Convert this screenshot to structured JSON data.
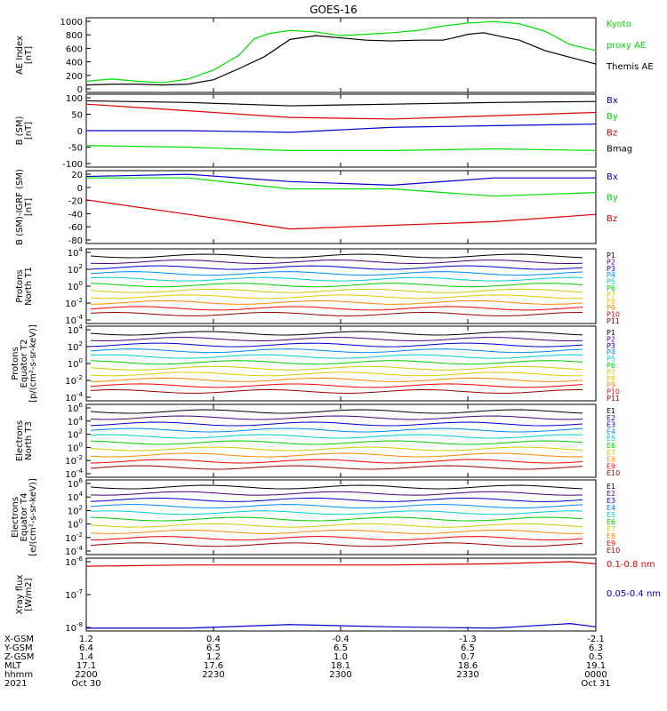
{
  "title": "GOES-16",
  "colors": {
    "black": "#000000",
    "green": "#00dd00",
    "red": "#dd0000",
    "blue": "#0000cc",
    "yellow": "#e6c800"
  },
  "chart_data": [
    {
      "type": "line",
      "panel": "ae",
      "ylabel": [
        "AE Index",
        "[nT]"
      ],
      "ylim": [
        0,
        1000
      ],
      "yticks": [
        "1000",
        "800",
        "600",
        "400",
        "200",
        "0"
      ],
      "legend": [
        {
          "label": "Kyoto",
          "color": "#00dd00"
        },
        {
          "label": "proxy AE",
          "color": "#00dd00"
        },
        {
          "label": "Themis AE",
          "color": "#000000"
        }
      ],
      "series": [
        {
          "name": "Kyoto proxy AE",
          "color": "#00dd00",
          "x": [
            0,
            5,
            10,
            15,
            20,
            25,
            30,
            33,
            36,
            40,
            45,
            50,
            55,
            60,
            65,
            70,
            75,
            80,
            85,
            90,
            95,
            100
          ],
          "y": [
            150,
            180,
            150,
            130,
            180,
            300,
            500,
            720,
            790,
            830,
            810,
            760,
            780,
            800,
            830,
            890,
            930,
            950,
            920,
            820,
            640,
            560
          ]
        },
        {
          "name": "Themis AE",
          "color": "#000000",
          "x": [
            0,
            5,
            10,
            15,
            20,
            25,
            30,
            35,
            40,
            45,
            50,
            55,
            60,
            65,
            70,
            72,
            75,
            78,
            82,
            85,
            90,
            95,
            100
          ],
          "y": [
            100,
            110,
            110,
            100,
            110,
            170,
            320,
            480,
            710,
            760,
            730,
            700,
            690,
            700,
            700,
            730,
            780,
            800,
            740,
            700,
            560,
            470,
            380
          ]
        }
      ]
    },
    {
      "type": "line",
      "panel": "b_sm",
      "ylabel": [
        "B (SM)",
        "[nT]"
      ],
      "ylim": [
        -110,
        110
      ],
      "yticks": [
        "100",
        "50",
        "0",
        "-50",
        "-100"
      ],
      "legend": [
        {
          "label": "Bx",
          "color": "#0000cc"
        },
        {
          "label": "By",
          "color": "#00dd00"
        },
        {
          "label": "Bz",
          "color": "#dd0000"
        },
        {
          "label": "Bmag",
          "color": "#000000"
        }
      ],
      "series": [
        {
          "name": "Bmag",
          "color": "#000000",
          "x": [
            0,
            20,
            40,
            60,
            80,
            100
          ],
          "y": [
            90,
            85,
            75,
            80,
            85,
            88
          ]
        },
        {
          "name": "Bz",
          "color": "#dd0000",
          "x": [
            0,
            20,
            40,
            60,
            80,
            100
          ],
          "y": [
            80,
            60,
            40,
            35,
            45,
            55
          ]
        },
        {
          "name": "Bx",
          "color": "#0000cc",
          "x": [
            0,
            20,
            40,
            60,
            80,
            100
          ],
          "y": [
            0,
            0,
            -5,
            10,
            15,
            20
          ]
        },
        {
          "name": "By",
          "color": "#00dd00",
          "x": [
            0,
            20,
            40,
            60,
            80,
            100
          ],
          "y": [
            -45,
            -50,
            -60,
            -60,
            -55,
            -60
          ]
        }
      ]
    },
    {
      "type": "line",
      "panel": "b_igrf",
      "ylabel": [
        "B (SM)-IGRF (SM)",
        "[nT]"
      ],
      "ylim": [
        -80,
        20
      ],
      "yticks": [
        "20",
        "0",
        "-20",
        "-40",
        "-60",
        "-80"
      ],
      "legend": [
        {
          "label": "Bx",
          "color": "#0000cc"
        },
        {
          "label": "By",
          "color": "#00dd00"
        },
        {
          "label": "Bz",
          "color": "#dd0000"
        }
      ],
      "series": [
        {
          "name": "Bx",
          "color": "#0000cc",
          "x": [
            0,
            20,
            40,
            60,
            80,
            100
          ],
          "y": [
            12,
            15,
            5,
            0,
            10,
            10
          ]
        },
        {
          "name": "By",
          "color": "#00dd00",
          "x": [
            0,
            20,
            40,
            60,
            80,
            100
          ],
          "y": [
            10,
            10,
            -5,
            -5,
            -15,
            -10
          ]
        },
        {
          "name": "Bz",
          "color": "#dd0000",
          "x": [
            0,
            20,
            40,
            60,
            80,
            100
          ],
          "y": [
            -20,
            -40,
            -60,
            -55,
            -50,
            -40
          ]
        }
      ]
    },
    {
      "type": "line",
      "panel": "protons_t1",
      "ylabel": [
        "Protons",
        "North T1"
      ],
      "yscale": "log",
      "yticks": [
        "10^4",
        "10^2",
        "10^0",
        "10^-2",
        "10^-4"
      ],
      "legend": [
        {
          "label": "P1",
          "color": "#000000"
        },
        {
          "label": "P2",
          "color": "#4b0082"
        },
        {
          "label": "P3",
          "color": "#0000cc"
        },
        {
          "label": "P4",
          "color": "#0088ff"
        },
        {
          "label": "P5",
          "color": "#00cccc"
        },
        {
          "label": "P6",
          "color": "#00cc00"
        },
        {
          "label": "P7",
          "color": "#cccc00"
        },
        {
          "label": "P8",
          "color": "#e6c800"
        },
        {
          "label": "P9",
          "color": "#ff8800"
        },
        {
          "label": "P10",
          "color": "#ff0000"
        },
        {
          "label": "P11",
          "color": "#990000"
        }
      ]
    },
    {
      "type": "line",
      "panel": "protons_t2",
      "ylabel": [
        "Protons",
        "Equator T2",
        "[p/(cm²-s-sr-keV)]"
      ],
      "yscale": "log",
      "yticks": [
        "10^4",
        "10^2",
        "10^0",
        "10^-2",
        "10^-4"
      ],
      "legend": [
        {
          "label": "P1",
          "color": "#000000"
        },
        {
          "label": "P2",
          "color": "#4b0082"
        },
        {
          "label": "P3",
          "color": "#0000cc"
        },
        {
          "label": "P4",
          "color": "#0088ff"
        },
        {
          "label": "P5",
          "color": "#00cccc"
        },
        {
          "label": "P6",
          "color": "#00cc00"
        },
        {
          "label": "P7",
          "color": "#cccc00"
        },
        {
          "label": "P8",
          "color": "#e6c800"
        },
        {
          "label": "P9",
          "color": "#ff8800"
        },
        {
          "label": "P10",
          "color": "#ff0000"
        },
        {
          "label": "P11",
          "color": "#990000"
        }
      ]
    },
    {
      "type": "line",
      "panel": "electrons_t3",
      "ylabel": [
        "Electrons",
        "North T3"
      ],
      "yscale": "log",
      "yticks": [
        "10^6",
        "10^4",
        "10^2",
        "10^0",
        "10^-2",
        "10^-4"
      ],
      "legend": [
        {
          "label": "E1",
          "color": "#000000"
        },
        {
          "label": "E2",
          "color": "#4b0082"
        },
        {
          "label": "E3",
          "color": "#0000cc"
        },
        {
          "label": "E4",
          "color": "#0088ff"
        },
        {
          "label": "E5",
          "color": "#00cccc"
        },
        {
          "label": "E6",
          "color": "#00cc00"
        },
        {
          "label": "E7",
          "color": "#cccc00"
        },
        {
          "label": "E8",
          "color": "#ff8800"
        },
        {
          "label": "E9",
          "color": "#ff0000"
        },
        {
          "label": "E10",
          "color": "#990000"
        }
      ]
    },
    {
      "type": "line",
      "panel": "electrons_t4",
      "ylabel": [
        "Electrons",
        "Equator T4",
        "[e/(cm²-s-sr-keV)]"
      ],
      "yscale": "log",
      "yticks": [
        "10^6",
        "10^4",
        "10^2",
        "10^0",
        "10^-2",
        "10^-4"
      ],
      "legend": [
        {
          "label": "E1",
          "color": "#000000"
        },
        {
          "label": "E2",
          "color": "#4b0082"
        },
        {
          "label": "E3",
          "color": "#0000cc"
        },
        {
          "label": "E4",
          "color": "#0088ff"
        },
        {
          "label": "E5",
          "color": "#00cccc"
        },
        {
          "label": "E6",
          "color": "#00cc00"
        },
        {
          "label": "E7",
          "color": "#cccc00"
        },
        {
          "label": "E8",
          "color": "#ff8800"
        },
        {
          "label": "E9",
          "color": "#ff0000"
        },
        {
          "label": "E10",
          "color": "#990000"
        }
      ]
    },
    {
      "type": "line",
      "panel": "xray",
      "ylabel": [
        "Xray flux",
        "[W/m2]"
      ],
      "yscale": "log",
      "yticks": [
        "10^-6",
        "10^-7",
        "10^-8"
      ],
      "legend": [
        {
          "label": "0.1-0.8 nm",
          "color": "#dd0000"
        },
        {
          "label": "0.05-0.4 nm",
          "color": "#0000cc"
        }
      ],
      "series": [
        {
          "name": "0.1-0.8 nm",
          "color": "#dd0000",
          "x": [
            0,
            20,
            40,
            60,
            80,
            95,
            100
          ],
          "y": [
            6e-07,
            6.5e-07,
            6.5e-07,
            6.5e-07,
            7e-07,
            8e-07,
            7e-07
          ]
        },
        {
          "name": "0.05-0.4 nm",
          "color": "#0000cc",
          "x": [
            0,
            20,
            40,
            60,
            80,
            95,
            100
          ],
          "y": [
            1.2e-08,
            1.2e-08,
            1.5e-08,
            1.3e-08,
            1.2e-08,
            1.6e-08,
            1.3e-08
          ]
        }
      ]
    }
  ],
  "x_axis": {
    "row_labels": [
      "X-GSM",
      "Y-GSM",
      "Z-GSM",
      "MLT",
      "hhmm",
      "2021"
    ],
    "columns": [
      [
        "1.2",
        "6.4",
        "1.4",
        "17.1",
        "2200",
        "Oct 30"
      ],
      [
        "0.4",
        "6.5",
        "1.2",
        "17.6",
        "2230",
        ""
      ],
      [
        "-0.4",
        "6.5",
        "1.0",
        "18.1",
        "2300",
        ""
      ],
      [
        "-1.3",
        "6.5",
        "0.7",
        "18.6",
        "2330",
        ""
      ],
      [
        "-2.1",
        "6.3",
        "0.5",
        "19.1",
        "0000",
        "Oct 31"
      ]
    ]
  }
}
